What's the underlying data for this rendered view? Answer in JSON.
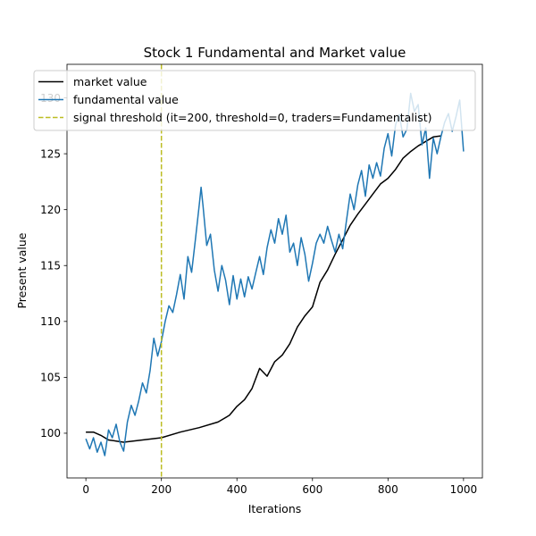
{
  "chart_data": {
    "type": "line",
    "title": "Stock 1 Fundamental and Market value",
    "xlabel": "Iterations",
    "ylabel": "Present value",
    "xlim": [
      -50,
      1050
    ],
    "ylim": [
      96,
      133
    ],
    "xticks": [
      0,
      200,
      400,
      600,
      800,
      1000
    ],
    "yticks": [
      100,
      105,
      110,
      115,
      120,
      125,
      130
    ],
    "grid": false,
    "legend_position": "top-left",
    "series": [
      {
        "name": "market value",
        "color": "#000000",
        "x": [
          0,
          20,
          40,
          60,
          80,
          100,
          150,
          200,
          250,
          300,
          350,
          380,
          400,
          420,
          440,
          460,
          480,
          500,
          520,
          540,
          560,
          580,
          600,
          620,
          640,
          660,
          680,
          700,
          720,
          740,
          760,
          780,
          800,
          820,
          840,
          860,
          880,
          900,
          920,
          940
        ],
        "y": [
          100.1,
          100.1,
          99.8,
          99.4,
          99.3,
          99.2,
          99.4,
          99.6,
          100.1,
          100.5,
          101.0,
          101.6,
          102.4,
          103.0,
          104.0,
          105.8,
          105.1,
          106.4,
          107.0,
          108.0,
          109.5,
          110.5,
          111.3,
          113.5,
          114.6,
          116.0,
          117.3,
          118.6,
          119.6,
          120.5,
          121.4,
          122.3,
          122.8,
          123.6,
          124.6,
          125.2,
          125.7,
          126.1,
          126.5,
          126.6
        ]
      },
      {
        "name": "fundamental value",
        "color": "#1f77b4",
        "x": [
          0,
          10,
          20,
          30,
          40,
          50,
          60,
          70,
          80,
          90,
          100,
          110,
          120,
          130,
          140,
          150,
          160,
          170,
          180,
          190,
          200,
          210,
          220,
          230,
          240,
          250,
          260,
          270,
          280,
          290,
          300,
          305,
          310,
          320,
          330,
          340,
          350,
          360,
          370,
          380,
          390,
          400,
          410,
          420,
          430,
          440,
          450,
          460,
          470,
          480,
          490,
          500,
          510,
          520,
          530,
          540,
          550,
          560,
          570,
          580,
          590,
          600,
          610,
          620,
          630,
          640,
          650,
          660,
          670,
          680,
          690,
          700,
          710,
          720,
          730,
          740,
          750,
          760,
          770,
          780,
          790,
          800,
          810,
          820,
          830,
          840,
          850,
          860,
          870,
          880,
          890,
          900,
          910,
          920,
          930,
          940,
          950,
          960,
          970,
          980,
          990,
          1000
        ],
        "y": [
          99.5,
          98.6,
          99.6,
          98.3,
          99.2,
          98.0,
          100.3,
          99.6,
          100.8,
          99.2,
          98.4,
          101.0,
          102.5,
          101.6,
          102.9,
          104.5,
          103.6,
          105.6,
          108.5,
          106.9,
          108.2,
          110.0,
          111.4,
          110.8,
          112.4,
          114.2,
          112.0,
          115.8,
          114.4,
          117.3,
          120.4,
          122.0,
          120.4,
          116.8,
          117.8,
          114.6,
          112.7,
          115.0,
          113.7,
          111.5,
          114.1,
          112.0,
          113.8,
          112.2,
          114.0,
          112.9,
          114.4,
          115.8,
          114.2,
          116.6,
          118.2,
          117.0,
          119.2,
          117.8,
          119.5,
          116.2,
          117.0,
          115.0,
          117.5,
          116.0,
          113.6,
          115.2,
          117.0,
          117.8,
          117.0,
          118.5,
          117.3,
          116.2,
          117.8,
          116.5,
          119.0,
          121.4,
          120.0,
          122.2,
          123.5,
          121.2,
          124.0,
          122.8,
          124.2,
          123.0,
          125.5,
          126.8,
          124.8,
          127.6,
          128.5,
          126.5,
          127.2,
          130.4,
          128.8,
          129.4,
          125.8,
          127.3,
          122.8,
          126.4,
          125.0,
          126.5,
          127.8,
          128.6,
          127.0,
          128.3,
          129.8,
          125.2
        ]
      },
      {
        "name": "signal threshold (it=200, threshold=0, traders=Fundamentalist)",
        "color": "#bcbd22",
        "style": "dashed",
        "x_const": 200
      }
    ]
  }
}
